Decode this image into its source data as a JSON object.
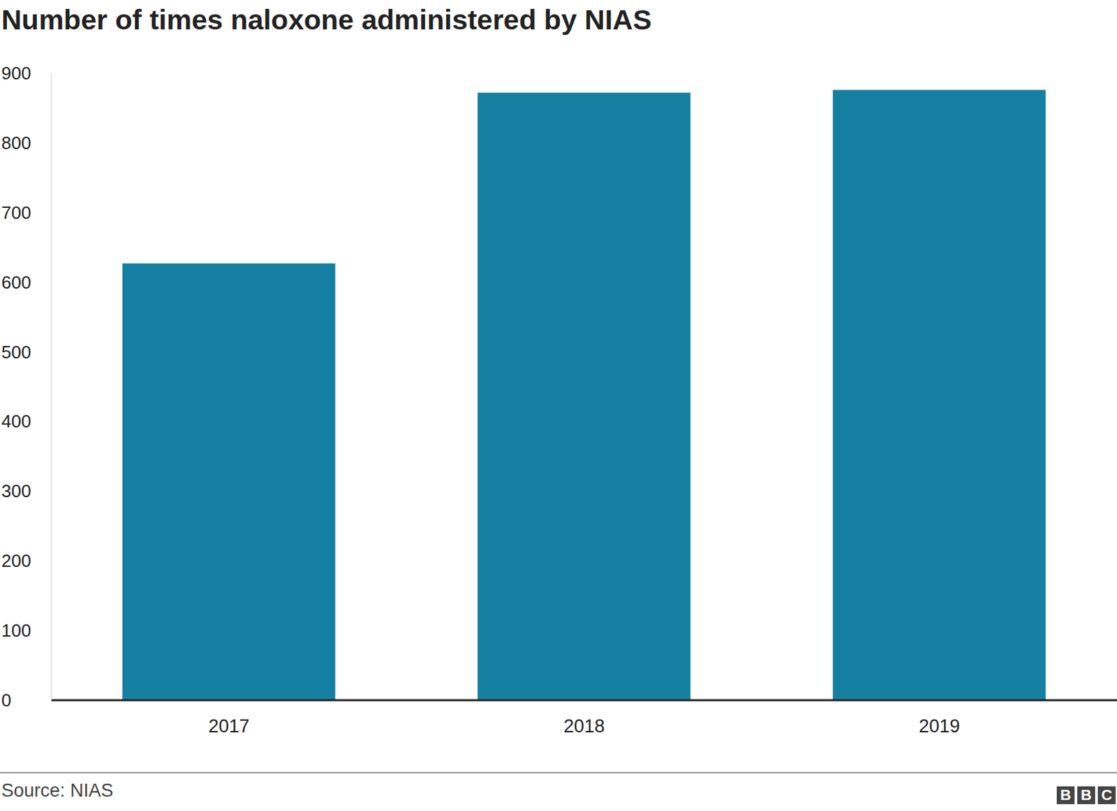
{
  "chart_data": {
    "type": "bar",
    "title": "Number of times naloxone administered by NIAS",
    "categories": [
      "2017",
      "2018",
      "2019"
    ],
    "values": [
      627,
      872,
      876
    ],
    "color": "#1580a2",
    "ylim": [
      0,
      900
    ],
    "yticks": [
      0,
      100,
      200,
      300,
      400,
      500,
      600,
      700,
      800,
      900
    ],
    "grid": false,
    "source": "Source: NIAS",
    "logo": "BBC"
  }
}
